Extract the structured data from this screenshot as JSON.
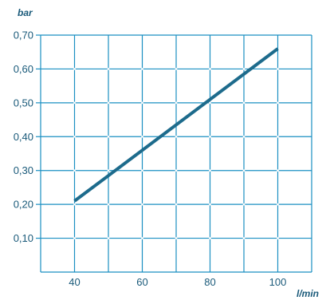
{
  "chart_data": {
    "type": "line",
    "title": "",
    "xlabel": "l/min",
    "ylabel": "bar",
    "xlim": [
      30,
      110
    ],
    "ylim": [
      0,
      0.7
    ],
    "x_ticks": [
      40,
      60,
      80,
      100
    ],
    "x_tick_labels": [
      "40",
      "60",
      "80",
      "100"
    ],
    "y_ticks": [
      0.1,
      0.2,
      0.3,
      0.4,
      0.5,
      0.6,
      0.7
    ],
    "y_tick_labels": [
      "0,10",
      "0,20",
      "0,30",
      "0,40",
      "0,50",
      "0,60",
      "0,70"
    ],
    "grid": true,
    "series": [
      {
        "x": [
          40,
          100
        ],
        "y": [
          0.21,
          0.66
        ]
      }
    ]
  },
  "colors": {
    "grid": "#1a8fc2",
    "line": "#1d6b8c",
    "text": "#1a5a7a"
  }
}
